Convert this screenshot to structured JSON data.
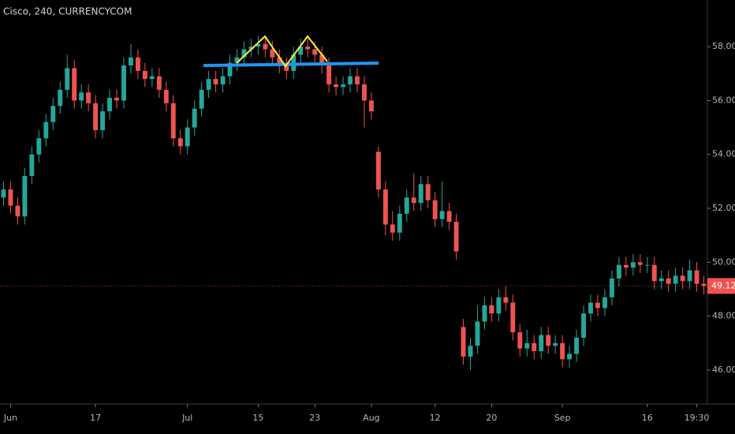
{
  "chart_data": {
    "type": "candlestick",
    "title": "Cisco, 240, CURRENCYCOM",
    "up_color": "#26a69a",
    "down_color": "#ef5350",
    "x": [
      0,
      1,
      2,
      3,
      4,
      5,
      6,
      7,
      8,
      9,
      10,
      11,
      12,
      13,
      14,
      15,
      16,
      17,
      18,
      19,
      20,
      21,
      22,
      23,
      24,
      25,
      26,
      27,
      28,
      29,
      30,
      31,
      32,
      33,
      34,
      35,
      36,
      37,
      38,
      39,
      40,
      41,
      42,
      43,
      44,
      45,
      46,
      47,
      48,
      49,
      50,
      51,
      52,
      53,
      54,
      55,
      56,
      57,
      58,
      59,
      60,
      61,
      62,
      63,
      64,
      65,
      66,
      67,
      68,
      69,
      70,
      71,
      72,
      73,
      74,
      75,
      76,
      77,
      78,
      79,
      80,
      81,
      82,
      83,
      84,
      85,
      86,
      87,
      88,
      89,
      90,
      91,
      92,
      93,
      94,
      95,
      96,
      97,
      98,
      99
    ],
    "open": [
      52.4,
      52.7,
      52.1,
      51.7,
      53.2,
      54.0,
      54.6,
      55.2,
      55.8,
      56.4,
      57.2,
      56.0,
      56.3,
      55.9,
      54.9,
      55.6,
      56.1,
      56.0,
      57.3,
      57.6,
      57.1,
      56.8,
      56.9,
      56.4,
      55.9,
      54.6,
      54.3,
      55.0,
      55.7,
      56.4,
      56.8,
      56.6,
      56.9,
      57.4,
      57.6,
      57.9,
      58.0,
      58.1,
      57.9,
      57.6,
      57.3,
      57.1,
      57.7,
      58.0,
      57.9,
      57.7,
      57.3,
      56.6,
      56.5,
      56.6,
      56.9,
      56.6,
      56.0,
      54.1,
      52.7,
      51.4,
      51.1,
      51.8,
      52.4,
      52.2,
      52.9,
      52.3,
      51.6,
      51.9,
      51.5,
      47.6,
      46.5,
      46.9,
      47.8,
      48.4,
      48.1,
      48.7,
      48.5,
      47.4,
      46.8,
      47.0,
      46.7,
      47.3,
      46.9,
      47.0,
      46.4,
      46.6,
      47.2,
      48.1,
      48.5,
      48.3,
      48.7,
      49.4,
      49.9,
      49.8,
      50.0,
      49.9,
      49.9,
      49.3,
      49.4,
      49.2,
      49.5,
      49.3,
      49.7,
      49.2
    ],
    "high": [
      53.0,
      53.0,
      52.4,
      53.5,
      54.3,
      54.9,
      55.5,
      56.1,
      56.7,
      57.7,
      57.5,
      56.6,
      56.6,
      56.2,
      55.9,
      56.4,
      56.4,
      57.6,
      58.1,
      57.9,
      57.4,
      57.2,
      57.2,
      56.7,
      56.2,
      54.9,
      55.3,
      56.0,
      56.7,
      57.1,
      57.1,
      57.2,
      57.7,
      57.9,
      58.2,
      58.3,
      58.4,
      58.4,
      58.2,
      57.9,
      57.6,
      58.0,
      58.3,
      58.3,
      58.2,
      58.0,
      57.6,
      56.9,
      56.9,
      57.2,
      57.2,
      56.9,
      56.3,
      54.3,
      53.0,
      51.9,
      52.1,
      52.7,
      53.3,
      53.2,
      53.2,
      52.6,
      53.0,
      52.2,
      51.8,
      47.9,
      47.2,
      48.4,
      48.7,
      48.7,
      49.0,
      49.1,
      48.8,
      47.7,
      47.5,
      47.3,
      47.6,
      47.6,
      47.3,
      47.3,
      46.9,
      47.5,
      48.4,
      48.8,
      48.8,
      49.0,
      49.7,
      50.2,
      50.2,
      50.3,
      50.3,
      50.2,
      50.2,
      49.7,
      49.7,
      49.8,
      49.8,
      50.1,
      50.0,
      49.5
    ],
    "low": [
      52.1,
      51.8,
      51.4,
      51.4,
      52.9,
      53.7,
      54.3,
      54.9,
      55.5,
      56.1,
      55.7,
      55.7,
      55.6,
      54.6,
      54.6,
      55.3,
      55.7,
      55.7,
      57.0,
      56.8,
      56.5,
      56.5,
      56.1,
      55.6,
      54.3,
      54.0,
      54.0,
      54.7,
      55.4,
      56.1,
      56.3,
      56.3,
      56.6,
      57.1,
      57.3,
      57.6,
      57.7,
      57.6,
      57.3,
      57.0,
      56.8,
      56.8,
      57.4,
      57.6,
      57.4,
      57.0,
      56.3,
      56.2,
      56.2,
      56.3,
      56.3,
      55.0,
      55.3,
      52.4,
      51.0,
      50.8,
      50.8,
      51.5,
      51.9,
      51.9,
      52.0,
      51.3,
      51.3,
      51.2,
      50.1,
      46.2,
      46.0,
      46.6,
      47.5,
      47.8,
      47.8,
      48.2,
      47.1,
      46.5,
      46.5,
      46.4,
      46.4,
      46.6,
      46.6,
      46.1,
      46.1,
      46.3,
      46.9,
      47.8,
      48.0,
      48.0,
      48.4,
      49.1,
      49.5,
      49.5,
      49.6,
      49.6,
      49.0,
      49.0,
      48.9,
      48.9,
      49.0,
      49.0,
      48.9,
      48.8
    ],
    "close": [
      52.7,
      52.1,
      51.7,
      53.2,
      54.0,
      54.6,
      55.2,
      55.8,
      56.4,
      57.2,
      56.0,
      56.3,
      55.9,
      54.9,
      55.6,
      56.1,
      56.0,
      57.3,
      57.6,
      57.1,
      56.8,
      56.9,
      56.4,
      55.9,
      54.6,
      54.3,
      55.0,
      55.7,
      56.4,
      56.8,
      56.6,
      56.9,
      57.4,
      57.6,
      57.9,
      58.0,
      58.1,
      57.9,
      57.6,
      57.3,
      57.1,
      57.7,
      58.0,
      57.9,
      57.7,
      57.3,
      56.6,
      56.5,
      56.6,
      56.9,
      56.6,
      56.0,
      55.6,
      52.7,
      51.4,
      51.1,
      51.8,
      52.4,
      52.2,
      52.9,
      52.3,
      51.6,
      51.9,
      51.5,
      50.4,
      46.5,
      46.9,
      47.8,
      48.4,
      48.1,
      48.7,
      48.5,
      47.4,
      46.8,
      47.0,
      46.7,
      47.3,
      46.9,
      47.0,
      46.4,
      46.6,
      47.2,
      48.1,
      48.5,
      48.3,
      48.7,
      49.4,
      49.9,
      49.8,
      50.0,
      49.9,
      49.9,
      49.3,
      49.4,
      49.2,
      49.5,
      49.3,
      49.7,
      49.2,
      49.12
    ],
    "xlim": [
      -0.5,
      99.5
    ],
    "xticks": [
      {
        "value": 1,
        "label": "Jun"
      },
      {
        "value": 13,
        "label": "17"
      },
      {
        "value": 26,
        "label": "Jul"
      },
      {
        "value": 36,
        "label": "15"
      },
      {
        "value": 44,
        "label": "23"
      },
      {
        "value": 52,
        "label": "Aug"
      },
      {
        "value": 61,
        "label": "12"
      },
      {
        "value": 69,
        "label": "20"
      },
      {
        "value": 79,
        "label": "Sep"
      },
      {
        "value": 91,
        "label": "16"
      },
      {
        "value": 98,
        "label": "19:30"
      }
    ],
    "ylim": [
      44.74,
      59.73
    ],
    "yticks": [
      {
        "value": 46,
        "label": "46.00"
      },
      {
        "value": 48,
        "label": "48.00"
      },
      {
        "value": 50,
        "label": "50.00"
      },
      {
        "value": 52,
        "label": "52.00"
      },
      {
        "value": 54,
        "label": "54.00"
      },
      {
        "value": 56,
        "label": "56.00"
      },
      {
        "value": 58,
        "label": "58.00"
      }
    ],
    "last_price": 49.12
  }
}
